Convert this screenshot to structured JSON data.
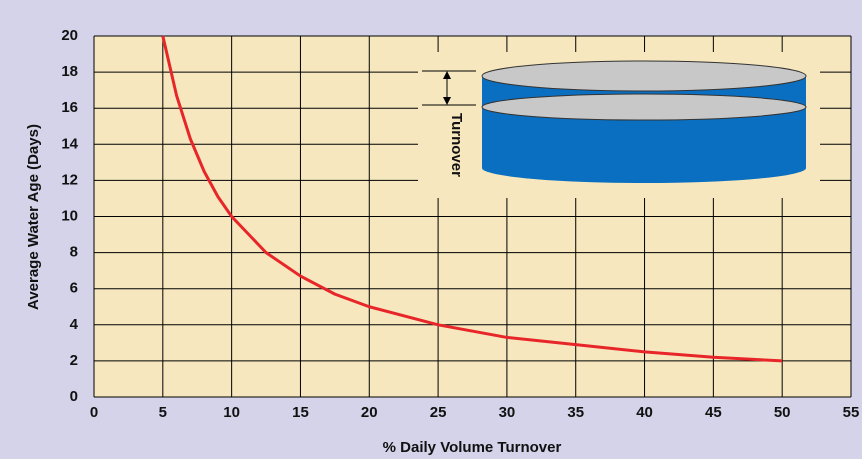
{
  "chart_data": {
    "type": "line",
    "x_label": "% Daily Volume Turnover",
    "y_label": "Average Water Age (Days)",
    "annotation": "Turnover",
    "x": [
      5,
      6,
      7,
      8,
      9,
      10,
      12.5,
      15,
      17.5,
      20,
      25,
      30,
      35,
      40,
      45,
      50
    ],
    "values": [
      20,
      16.7,
      14.3,
      12.5,
      11.1,
      10,
      8,
      6.7,
      5.7,
      5,
      4,
      3.3,
      2.9,
      2.5,
      2.2,
      2
    ],
    "color": "#e8262a",
    "xlim": [
      0,
      55
    ],
    "xticks": [
      0,
      5,
      10,
      15,
      20,
      25,
      30,
      35,
      40,
      45,
      50,
      55
    ],
    "ylim": [
      0,
      20
    ],
    "yticks": [
      0,
      2,
      4,
      6,
      8,
      10,
      12,
      14,
      16,
      18,
      20
    ],
    "grid": true
  }
}
